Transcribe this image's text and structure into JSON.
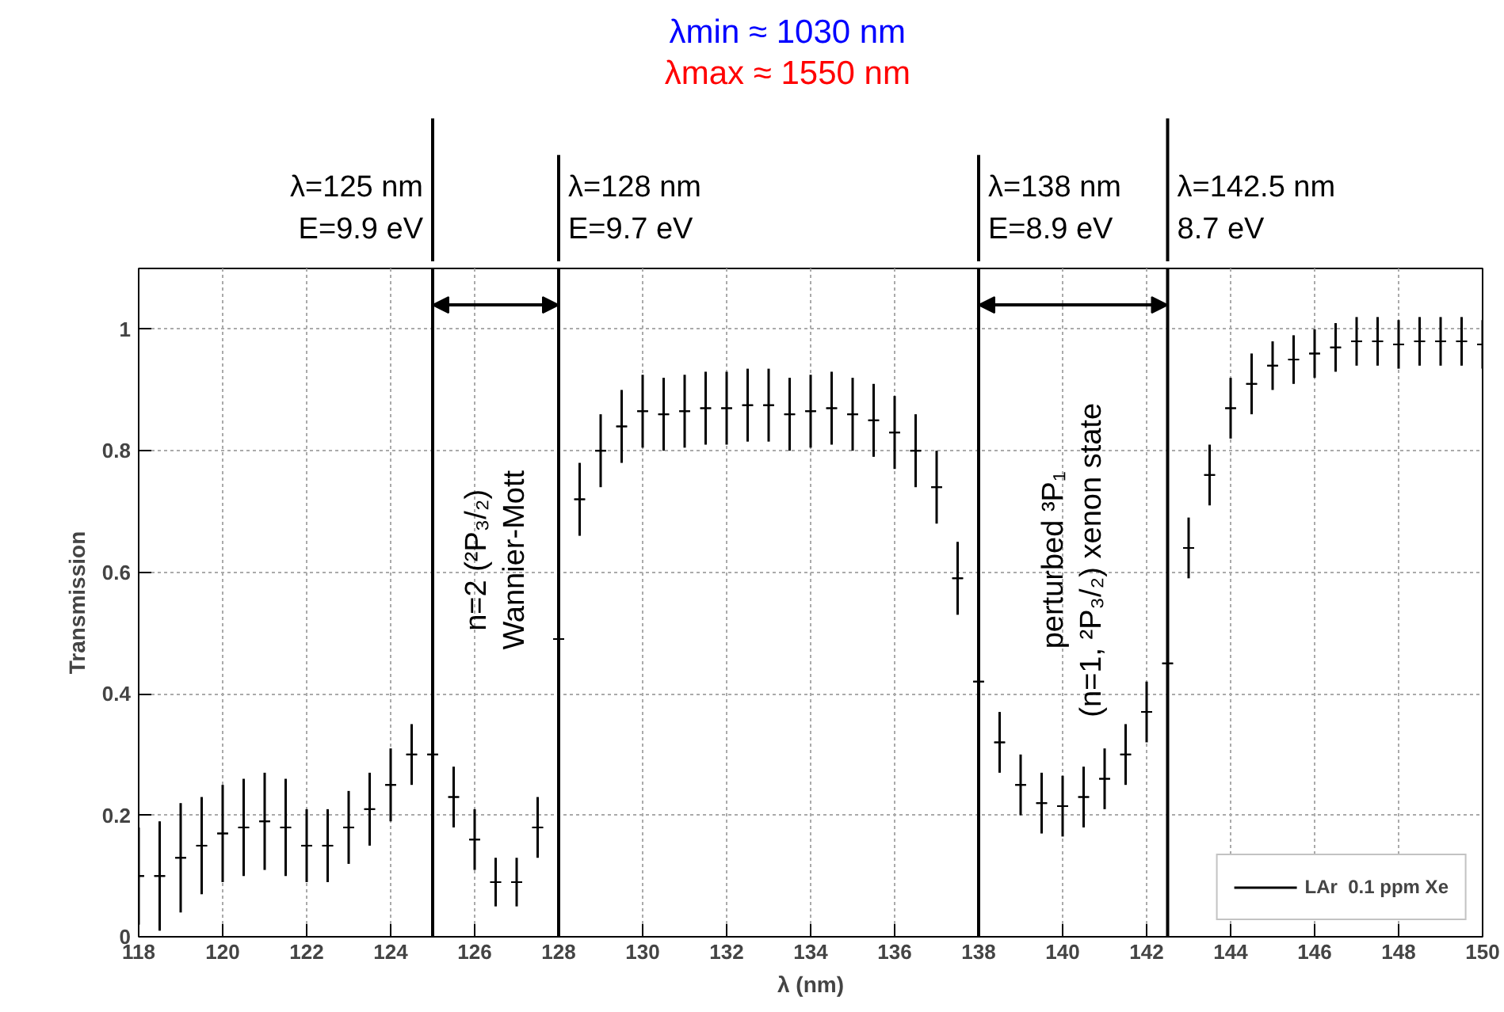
{
  "chart_data": {
    "type": "scatter",
    "xlabel": "λ (nm)",
    "ylabel": "Transmission",
    "x": [
      118,
      118.5,
      119,
      119.5,
      120,
      120.5,
      121,
      121.5,
      122,
      122.5,
      123,
      123.5,
      124,
      124.5,
      125,
      125.5,
      126,
      126.5,
      127,
      127.5,
      128,
      128.5,
      129,
      129.5,
      130,
      130.5,
      131,
      131.5,
      132,
      132.5,
      133,
      133.5,
      134,
      134.5,
      135,
      135.5,
      136,
      136.5,
      137,
      137.5,
      138,
      138.5,
      139,
      139.5,
      140,
      140.5,
      141,
      141.5,
      142,
      142.5,
      143,
      143.5,
      144,
      144.5,
      145,
      145.5,
      146,
      146.5,
      147,
      147.5,
      148,
      148.5,
      149,
      149.5,
      150
    ],
    "series": [
      {
        "name": "LAr  0.1 ppm Xe",
        "color": "#000000",
        "values": [
          0.1,
          0.1,
          0.13,
          0.15,
          0.17,
          0.18,
          0.19,
          0.18,
          0.15,
          0.15,
          0.18,
          0.21,
          0.25,
          0.3,
          0.3,
          0.23,
          0.16,
          0.09,
          0.09,
          0.18,
          0.49,
          0.72,
          0.8,
          0.84,
          0.865,
          0.86,
          0.865,
          0.87,
          0.87,
          0.875,
          0.875,
          0.86,
          0.865,
          0.87,
          0.86,
          0.85,
          0.83,
          0.8,
          0.74,
          0.59,
          0.42,
          0.32,
          0.25,
          0.22,
          0.215,
          0.23,
          0.26,
          0.3,
          0.37,
          0.45,
          0.64,
          0.76,
          0.87,
          0.91,
          0.94,
          0.95,
          0.96,
          0.97,
          0.98,
          0.98,
          0.975,
          0.98,
          0.98,
          0.98,
          0.975
        ],
        "errors": [
          0.08,
          0.09,
          0.09,
          0.08,
          0.08,
          0.08,
          0.08,
          0.08,
          0.06,
          0.06,
          0.06,
          0.06,
          0.06,
          0.05,
          0.05,
          0.05,
          0.05,
          0.04,
          0.04,
          0.05,
          0.06,
          0.06,
          0.06,
          0.06,
          0.06,
          0.06,
          0.06,
          0.06,
          0.06,
          0.06,
          0.06,
          0.06,
          0.06,
          0.06,
          0.06,
          0.06,
          0.06,
          0.06,
          0.06,
          0.06,
          0.05,
          0.05,
          0.05,
          0.05,
          0.05,
          0.05,
          0.05,
          0.05,
          0.05,
          0.05,
          0.05,
          0.05,
          0.05,
          0.05,
          0.04,
          0.04,
          0.04,
          0.04,
          0.04,
          0.04,
          0.04,
          0.04,
          0.04,
          0.04,
          0.04
        ],
        "xerrors": [
          0.125,
          0.125,
          0.125,
          0.125,
          0.125,
          0.125,
          0.125,
          0.125,
          0.125,
          0.125,
          0.125,
          0.125,
          0.125,
          0.125,
          0.125,
          0.125,
          0.125,
          0.125,
          0.125,
          0.125,
          0.125,
          0.125,
          0.125,
          0.125,
          0.125,
          0.125,
          0.125,
          0.125,
          0.125,
          0.125,
          0.125,
          0.125,
          0.125,
          0.125,
          0.125,
          0.125,
          0.125,
          0.125,
          0.125,
          0.125,
          0.125,
          0.125,
          0.125,
          0.125,
          0.125,
          0.125,
          0.125,
          0.125,
          0.125,
          0.125,
          0.125,
          0.125,
          0.125,
          0.125,
          0.125,
          0.125,
          0.125,
          0.125,
          0.125,
          0.125,
          0.125,
          0.125,
          0.125,
          0.125,
          0.125
        ]
      }
    ],
    "xlim": [
      118,
      150
    ],
    "ylim": [
      0,
      1.1
    ],
    "xticks": [
      118,
      120,
      122,
      124,
      126,
      128,
      130,
      132,
      134,
      136,
      138,
      140,
      142,
      144,
      146,
      148,
      150
    ],
    "yticks": [
      0,
      0.2,
      0.4,
      0.6,
      0.8,
      1
    ],
    "grid": true,
    "legend": "bottom right",
    "marker": "cross",
    "ref_lines": [
      {
        "axis": "x",
        "value": 125,
        "label": "λ=125 nm\nE=9.9 eV"
      },
      {
        "axis": "x",
        "value": 128,
        "label": "λ=128 nm\nE=9.7 eV"
      },
      {
        "axis": "x",
        "value": 138,
        "label": "λ=138 nm\nE=8.9 eV"
      },
      {
        "axis": "x",
        "value": 142.5,
        "label": "λ=142.5 nm\n8.7 eV"
      }
    ],
    "annotations": [
      "λmin ≈ 1030 nm",
      "λmax ≈ 1550 nm",
      "n=2 (²P₃/₂)\nWannier-Mott",
      "perturbed ³P₁\n(n=1, ²P₃/₂) xenon state"
    ]
  }
}
